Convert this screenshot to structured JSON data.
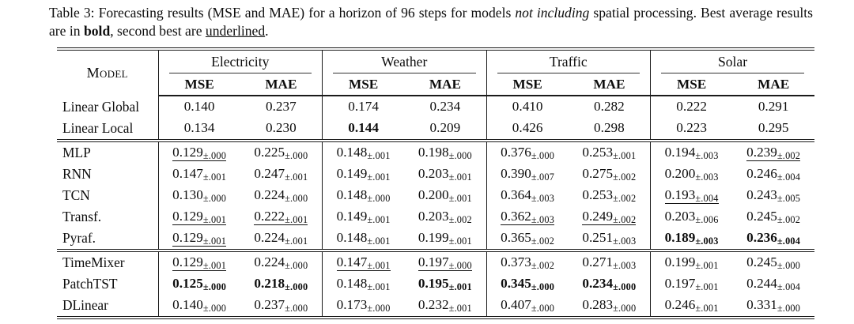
{
  "caption": {
    "segments": [
      {
        "t": "Table 3: Forecasting results (MSE and MAE) for a horizon of 96 steps for models "
      },
      {
        "t": "not including",
        "style": "italic"
      },
      {
        "t": " spatial processing. Best average results are in "
      },
      {
        "t": "bold",
        "style": "bold"
      },
      {
        "t": ", second best are "
      },
      {
        "t": "underlined",
        "style": "underline"
      },
      {
        "t": "."
      }
    ]
  },
  "table": {
    "model_header": "Model",
    "groups": [
      {
        "label": "Electricity"
      },
      {
        "label": "Weather"
      },
      {
        "label": "Traffic"
      },
      {
        "label": "Solar"
      }
    ],
    "subheaders": [
      "MSE",
      "MAE"
    ],
    "sections": [
      {
        "rows": [
          {
            "model": "Linear Global",
            "cells": [
              {
                "v": "0.140"
              },
              {
                "v": "0.237"
              },
              {
                "v": "0.174"
              },
              {
                "v": "0.234"
              },
              {
                "v": "0.410"
              },
              {
                "v": "0.282"
              },
              {
                "v": "0.222"
              },
              {
                "v": "0.291"
              }
            ]
          },
          {
            "model": "Linear Local",
            "cells": [
              {
                "v": "0.134"
              },
              {
                "v": "0.230"
              },
              {
                "v": "0.144",
                "em": "bold"
              },
              {
                "v": "0.209"
              },
              {
                "v": "0.426"
              },
              {
                "v": "0.298"
              },
              {
                "v": "0.223"
              },
              {
                "v": "0.295"
              }
            ]
          }
        ]
      },
      {
        "rows": [
          {
            "model": "MLP",
            "cells": [
              {
                "v": "0.129",
                "pm": ".000",
                "em": "underline"
              },
              {
                "v": "0.225",
                "pm": ".000"
              },
              {
                "v": "0.148",
                "pm": ".001"
              },
              {
                "v": "0.198",
                "pm": ".000"
              },
              {
                "v": "0.376",
                "pm": ".000"
              },
              {
                "v": "0.253",
                "pm": ".001"
              },
              {
                "v": "0.194",
                "pm": ".003"
              },
              {
                "v": "0.239",
                "pm": ".002",
                "em": "underline"
              }
            ]
          },
          {
            "model": "RNN",
            "cells": [
              {
                "v": "0.147",
                "pm": ".001"
              },
              {
                "v": "0.247",
                "pm": ".001"
              },
              {
                "v": "0.149",
                "pm": ".001"
              },
              {
                "v": "0.203",
                "pm": ".001"
              },
              {
                "v": "0.390",
                "pm": ".007"
              },
              {
                "v": "0.275",
                "pm": ".002"
              },
              {
                "v": "0.200",
                "pm": ".003"
              },
              {
                "v": "0.246",
                "pm": ".004"
              }
            ]
          },
          {
            "model": "TCN",
            "cells": [
              {
                "v": "0.130",
                "pm": ".000"
              },
              {
                "v": "0.224",
                "pm": ".000"
              },
              {
                "v": "0.148",
                "pm": ".000"
              },
              {
                "v": "0.200",
                "pm": ".001"
              },
              {
                "v": "0.364",
                "pm": ".003"
              },
              {
                "v": "0.253",
                "pm": ".002"
              },
              {
                "v": "0.193",
                "pm": ".004",
                "em": "underline"
              },
              {
                "v": "0.243",
                "pm": ".005"
              }
            ]
          },
          {
            "model": "Transf.",
            "cells": [
              {
                "v": "0.129",
                "pm": ".001",
                "em": "underline"
              },
              {
                "v": "0.222",
                "pm": ".001",
                "em": "underline"
              },
              {
                "v": "0.149",
                "pm": ".001"
              },
              {
                "v": "0.203",
                "pm": ".002"
              },
              {
                "v": "0.362",
                "pm": ".003",
                "em": "underline"
              },
              {
                "v": "0.249",
                "pm": ".002",
                "em": "underline"
              },
              {
                "v": "0.203",
                "pm": ".006"
              },
              {
                "v": "0.245",
                "pm": ".002"
              }
            ]
          },
          {
            "model": "Pyraf.",
            "cells": [
              {
                "v": "0.129",
                "pm": ".001",
                "em": "underline"
              },
              {
                "v": "0.224",
                "pm": ".001"
              },
              {
                "v": "0.148",
                "pm": ".001"
              },
              {
                "v": "0.199",
                "pm": ".001"
              },
              {
                "v": "0.365",
                "pm": ".002"
              },
              {
                "v": "0.251",
                "pm": ".003"
              },
              {
                "v": "0.189",
                "pm": ".003",
                "em": "bold"
              },
              {
                "v": "0.236",
                "pm": ".004",
                "em": "bold"
              }
            ]
          }
        ]
      },
      {
        "rows": [
          {
            "model": "TimeMixer",
            "cells": [
              {
                "v": "0.129",
                "pm": ".001",
                "em": "underline"
              },
              {
                "v": "0.224",
                "pm": ".000"
              },
              {
                "v": "0.147",
                "pm": ".001",
                "em": "underline"
              },
              {
                "v": "0.197",
                "pm": ".000",
                "em": "underline"
              },
              {
                "v": "0.373",
                "pm": ".002"
              },
              {
                "v": "0.271",
                "pm": ".003"
              },
              {
                "v": "0.199",
                "pm": ".001"
              },
              {
                "v": "0.245",
                "pm": ".000"
              }
            ]
          },
          {
            "model": "PatchTST",
            "cells": [
              {
                "v": "0.125",
                "pm": ".000",
                "em": "bold"
              },
              {
                "v": "0.218",
                "pm": ".000",
                "em": "bold"
              },
              {
                "v": "0.148",
                "pm": ".001"
              },
              {
                "v": "0.195",
                "pm": ".001",
                "em": "bold"
              },
              {
                "v": "0.345",
                "pm": ".000",
                "em": "bold"
              },
              {
                "v": "0.234",
                "pm": ".000",
                "em": "bold"
              },
              {
                "v": "0.197",
                "pm": ".001"
              },
              {
                "v": "0.244",
                "pm": ".004"
              }
            ]
          },
          {
            "model": "DLinear",
            "cells": [
              {
                "v": "0.140",
                "pm": ".000"
              },
              {
                "v": "0.237",
                "pm": ".000"
              },
              {
                "v": "0.173",
                "pm": ".000"
              },
              {
                "v": "0.232",
                "pm": ".001"
              },
              {
                "v": "0.407",
                "pm": ".000"
              },
              {
                "v": "0.283",
                "pm": ".000"
              },
              {
                "v": "0.246",
                "pm": ".001"
              },
              {
                "v": "0.331",
                "pm": ".000"
              }
            ]
          }
        ]
      }
    ]
  }
}
